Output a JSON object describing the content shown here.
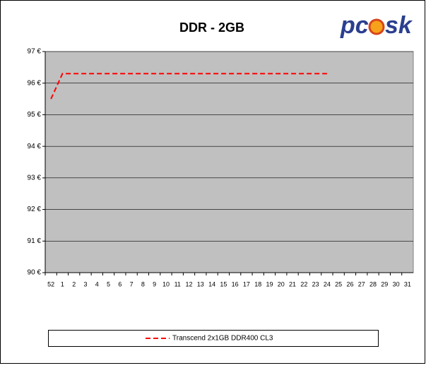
{
  "chart_data": {
    "type": "line",
    "title": "DDR - 2GB",
    "logo": {
      "left": "pc",
      "right": "sk"
    },
    "categories": [
      "52",
      "1",
      "2",
      "3",
      "4",
      "5",
      "6",
      "7",
      "8",
      "9",
      "10",
      "11",
      "12",
      "13",
      "14",
      "15",
      "16",
      "17",
      "18",
      "19",
      "20",
      "21",
      "22",
      "23",
      "24",
      "25",
      "26",
      "27",
      "28",
      "29",
      "30",
      "31"
    ],
    "series": [
      {
        "name": "Transcend 2x1GB DDR400 CL3",
        "color": "#ff0000",
        "values": [
          95.5,
          96.3,
          96.3,
          96.3,
          96.3,
          96.3,
          96.3,
          96.3,
          96.3,
          96.3,
          96.3,
          96.3,
          96.3,
          96.3,
          96.3,
          96.3,
          96.3,
          96.3,
          96.3,
          96.3,
          96.3,
          96.3,
          96.3,
          96.3,
          96.3,
          null,
          null,
          null,
          null,
          null,
          null,
          null
        ]
      }
    ],
    "ylim": [
      90,
      97
    ],
    "yticks": [
      {
        "value": 90,
        "label": "90 €"
      },
      {
        "value": 91,
        "label": "91 €"
      },
      {
        "value": 92,
        "label": "92 €"
      },
      {
        "value": 93,
        "label": "93 €"
      },
      {
        "value": 94,
        "label": "94 €"
      },
      {
        "value": 95,
        "label": "95 €"
      },
      {
        "value": 96,
        "label": "96 €"
      },
      {
        "value": 97,
        "label": "97 €"
      }
    ],
    "grid": true,
    "plot_background": "#c0c0c0",
    "legend": "bottom"
  }
}
